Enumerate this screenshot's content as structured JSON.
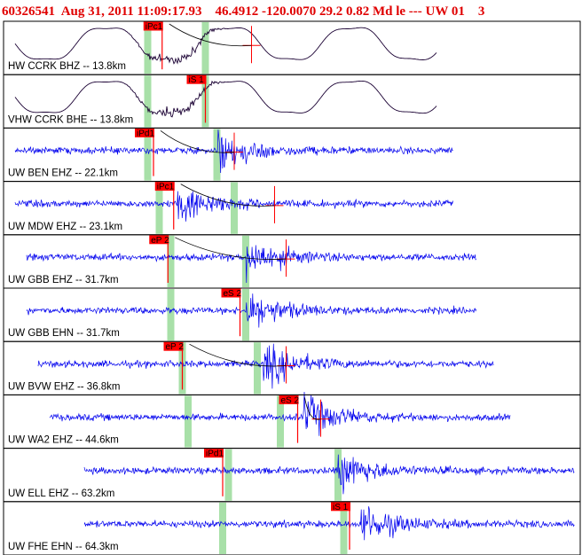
{
  "header": {
    "event_id": "60326541",
    "datetime": "Aug 31, 2011 11:09:17.93",
    "location": "46.4912 -120.0070 29.2 0.82 Md le --- UW 01",
    "trailing": "3"
  },
  "colors": {
    "header_text": "#e00000",
    "trace_short_period": "#0000ee",
    "trace_broadband": "#1a0033",
    "pick_box": "#ff0000",
    "pick_line": "#ff0000",
    "theoretical_window": "#a8e0a8",
    "frame": "#000000"
  },
  "chart_data": {
    "type": "line",
    "title": "",
    "xlabel": "",
    "ylabel": "",
    "traces": [
      {
        "label": "HW CCRK BHZ -- 13.8km",
        "style": "long-period",
        "start": 0.02,
        "end": 0.75,
        "onset": 0.3,
        "pick": {
          "phase": "iPc1",
          "pos": 0.275
        },
        "windows": [
          0.25,
          0.35
        ],
        "tail_mark": 0.43
      },
      {
        "label": "VHW CCRK BHE -- 13.8km",
        "style": "long-period",
        "start": 0.02,
        "end": 0.75,
        "onset": 0.3,
        "pick": {
          "phase": "iS 1",
          "pos": 0.35
        },
        "windows": [
          0.25,
          0.35
        ],
        "tail_mark": 0.0
      },
      {
        "label": "UW BEN EHZ -- 22.1km",
        "style": "short-period",
        "start": 0.02,
        "end": 0.78,
        "onset": 0.37,
        "pick": {
          "phase": "iPd1",
          "pos": 0.26
        },
        "windows": [
          0.25,
          0.37
        ],
        "tail_mark": 0.4
      },
      {
        "label": "UW MDW EHZ -- 23.1km",
        "style": "short-period",
        "start": 0.02,
        "end": 0.78,
        "onset": 0.3,
        "pick": {
          "phase": "iPc1",
          "pos": 0.295
        },
        "windows": [
          0.27,
          0.4
        ],
        "tail_mark": 0.47
      },
      {
        "label": "UW GBB EHZ -- 31.7km",
        "style": "short-period",
        "start": 0.04,
        "end": 0.82,
        "onset": 0.42,
        "pick": {
          "phase": "eP 2",
          "pos": 0.285
        },
        "windows": [
          0.29,
          0.42
        ],
        "tail_mark": 0.49
      },
      {
        "label": "UW GBB EHN -- 31.7km",
        "style": "short-period",
        "start": 0.04,
        "end": 0.82,
        "onset": 0.42,
        "pick": {
          "phase": "eS 2",
          "pos": 0.41
        },
        "windows": [
          0.29,
          0.42
        ],
        "tail_mark": 0.0
      },
      {
        "label": "UW BVW EHZ -- 36.8km",
        "style": "short-period",
        "start": 0.06,
        "end": 0.85,
        "onset": 0.45,
        "pick": {
          "phase": "eP 2",
          "pos": 0.31
        },
        "windows": [
          0.31,
          0.44
        ],
        "tail_mark": 0.49
      },
      {
        "label": "UW WA2 EHZ -- 44.6km",
        "style": "short-period",
        "start": 0.08,
        "end": 0.88,
        "onset": 0.52,
        "pick": {
          "phase": "eS 2",
          "pos": 0.51
        },
        "windows": [
          0.32,
          0.48
        ],
        "tail_mark": 0.55
      },
      {
        "label": "UW ELL EHZ -- 63.2km",
        "style": "short-period",
        "start": 0.14,
        "end": 0.99,
        "onset": 0.58,
        "pick": {
          "phase": "iPd1",
          "pos": 0.38
        },
        "windows": [
          0.39,
          0.58
        ],
        "tail_mark": 0.0
      },
      {
        "label": "UW FHE EHN -- 64.3km",
        "style": "short-period",
        "start": 0.14,
        "end": 0.99,
        "onset": 0.62,
        "pick": {
          "phase": "iS 1",
          "pos": 0.6
        },
        "windows": [
          0.38,
          0.59
        ],
        "tail_mark": 0.0
      }
    ]
  }
}
